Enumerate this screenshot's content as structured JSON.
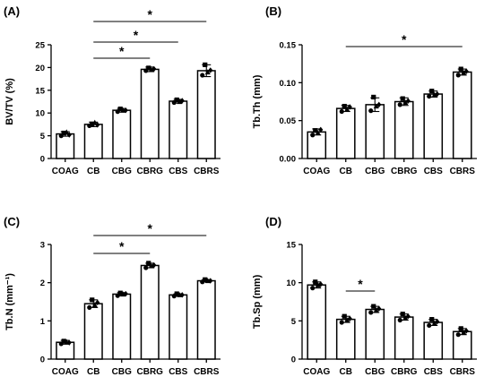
{
  "chart_data": [
    {
      "type": "bar",
      "panel_label": "(A)",
      "ylabel": "BV/TV (%)",
      "categories": [
        "COAG",
        "CB",
        "CBG",
        "CBRG",
        "CBS",
        "CBRS"
      ],
      "values": [
        5.4,
        7.5,
        10.6,
        19.6,
        12.6,
        19.3
      ],
      "errors": [
        0.5,
        0.5,
        0.4,
        0.5,
        0.4,
        1.3
      ],
      "points": [
        [
          5.0,
          5.6,
          5.8,
          5.2
        ],
        [
          7.2,
          7.6,
          7.9,
          7.4
        ],
        [
          10.3,
          10.9,
          10.6,
          10.6
        ],
        [
          19.3,
          19.9,
          19.5,
          19.7
        ],
        [
          12.3,
          12.9,
          12.5,
          12.7
        ],
        [
          18.3,
          20.6,
          19.0,
          19.4
        ]
      ],
      "ylim": [
        0,
        25
      ],
      "yticks": [
        "0",
        "5",
        "10",
        "15",
        "20",
        "25"
      ],
      "significance": [
        {
          "from": "CB",
          "to": "CBRG",
          "label": "*"
        },
        {
          "from": "CB",
          "to": "CBS",
          "label": "*"
        },
        {
          "from": "CB",
          "to": "CBRS",
          "label": "*"
        }
      ]
    },
    {
      "type": "bar",
      "panel_label": "(B)",
      "ylabel": "Tb.Th (mm)",
      "categories": [
        "COAG",
        "CB",
        "CBG",
        "CBRG",
        "CBS",
        "CBRS"
      ],
      "values": [
        0.035,
        0.066,
        0.071,
        0.075,
        0.085,
        0.114
      ],
      "errors": [
        0.004,
        0.004,
        0.009,
        0.005,
        0.004,
        0.004
      ],
      "points": [
        [
          0.031,
          0.037,
          0.034,
          0.038
        ],
        [
          0.062,
          0.069,
          0.065,
          0.068
        ],
        [
          0.063,
          0.081,
          0.069,
          0.071
        ],
        [
          0.071,
          0.079,
          0.074,
          0.076
        ],
        [
          0.082,
          0.089,
          0.084,
          0.085
        ],
        [
          0.11,
          0.118,
          0.113,
          0.115
        ]
      ],
      "ylim": [
        0,
        0.15
      ],
      "yticks": [
        "0.00",
        "0.05",
        "0.10",
        "0.15"
      ],
      "significance": [
        {
          "from": "CB",
          "to": "CBRS",
          "label": "*"
        }
      ]
    },
    {
      "type": "bar",
      "panel_label": "(C)",
      "ylabel": "Tb.N (mm⁻¹)",
      "categories": [
        "COAG",
        "CB",
        "CBG",
        "CBRG",
        "CBS",
        "CBRS"
      ],
      "values": [
        0.44,
        1.45,
        1.7,
        2.45,
        1.68,
        2.05
      ],
      "errors": [
        0.05,
        0.1,
        0.04,
        0.06,
        0.03,
        0.03
      ],
      "points": [
        [
          0.4,
          0.47,
          0.45,
          0.43
        ],
        [
          1.35,
          1.55,
          1.42,
          1.48
        ],
        [
          1.66,
          1.73,
          1.7,
          1.71
        ],
        [
          2.39,
          2.51,
          2.44,
          2.46
        ],
        [
          1.65,
          1.71,
          1.68,
          1.68
        ],
        [
          2.02,
          2.08,
          2.05,
          2.05
        ]
      ],
      "ylim": [
        0,
        3
      ],
      "yticks": [
        "0",
        "1",
        "2",
        "3"
      ],
      "significance": [
        {
          "from": "CB",
          "to": "CBRG",
          "label": "*"
        },
        {
          "from": "CB",
          "to": "CBRS",
          "label": "*"
        }
      ]
    },
    {
      "type": "bar",
      "panel_label": "(D)",
      "ylabel": "Tb.Sp (mm)",
      "categories": [
        "COAG",
        "CB",
        "CBG",
        "CBRG",
        "CBS",
        "CBRS"
      ],
      "values": [
        9.7,
        5.2,
        6.5,
        5.5,
        4.8,
        3.6
      ],
      "errors": [
        0.4,
        0.4,
        0.4,
        0.4,
        0.4,
        0.4
      ],
      "points": [
        [
          9.3,
          10.1,
          9.7,
          9.8
        ],
        [
          4.8,
          5.6,
          5.1,
          5.3
        ],
        [
          6.1,
          6.9,
          6.4,
          6.6
        ],
        [
          5.1,
          5.9,
          5.4,
          5.6
        ],
        [
          4.4,
          5.2,
          4.7,
          4.9
        ],
        [
          3.2,
          4.0,
          3.5,
          3.7
        ]
      ],
      "ylim": [
        0,
        15
      ],
      "yticks": [
        "0",
        "5",
        "10",
        "15"
      ],
      "significance": [
        {
          "from": "CB",
          "to": "CBG",
          "label": "*"
        }
      ]
    }
  ]
}
